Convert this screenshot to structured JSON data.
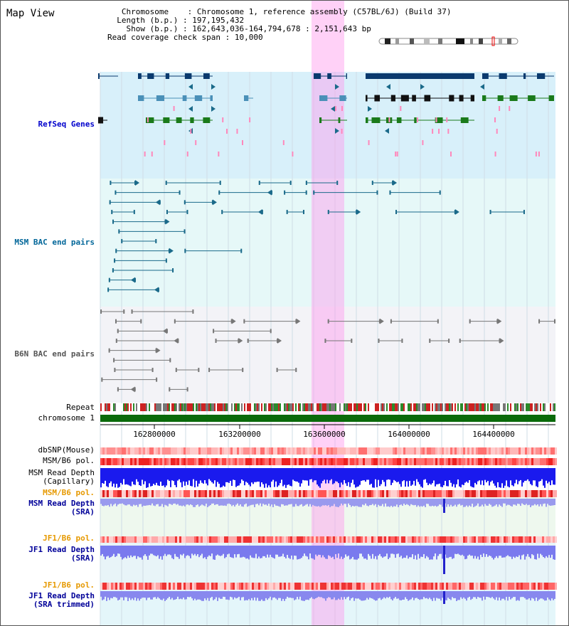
{
  "header": {
    "title": "Map View",
    "chromosome_label": "Chromosome",
    "chromosome_value": "Chromosome 1, reference assembly (C57BL/6J) (Build 37)",
    "length_label": "Length (b.p.)",
    "length_value": "197,195,432",
    "show_label": "Show (b.p.)",
    "show_value": "162,643,036-164,794,678 : 2,151,643 bp",
    "span_label": "Read coverage check span",
    "span_value": "10,000"
  },
  "tracks": {
    "refseq": "RefSeq Genes",
    "msm_bac": "MSM BAC end pairs",
    "b6n_bac": "B6N BAC end pairs",
    "repeat": "Repeat",
    "chromosome": "chromosome 1",
    "dbsnp": "dbSNP(Mouse)",
    "msm_b6_pol_1": "MSM/B6 pol.",
    "msm_depth_cap_1": "MSM Read Depth",
    "msm_depth_cap_2": "(Capillary)",
    "msm_b6_pol_2": "MSM/B6 pol.",
    "msm_depth_sra_1": "MSM Read Depth",
    "msm_depth_sra_2": "(SRA)",
    "jf1_b6_pol_1": "JF1/B6 pol.",
    "jf1_depth_sra_1": "JF1 Read Depth",
    "jf1_depth_sra_2": "(SRA)",
    "jf1_b6_pol_2": "JF1/B6 pol.",
    "jf1_depth_trim_1": "JF1 Read Depth",
    "jf1_depth_trim_2": "(SRA trimmed)"
  },
  "axis": {
    "ticks": [
      "162800000",
      "163200000",
      "163600000",
      "164000000",
      "164400000"
    ]
  },
  "colors": {
    "refseq_label": "#0000cc",
    "msm_label": "#006699",
    "b6n_label": "#555555",
    "blue_label": "#000099",
    "orange_label": "#e69900",
    "highlight": "#ff99ee"
  }
}
